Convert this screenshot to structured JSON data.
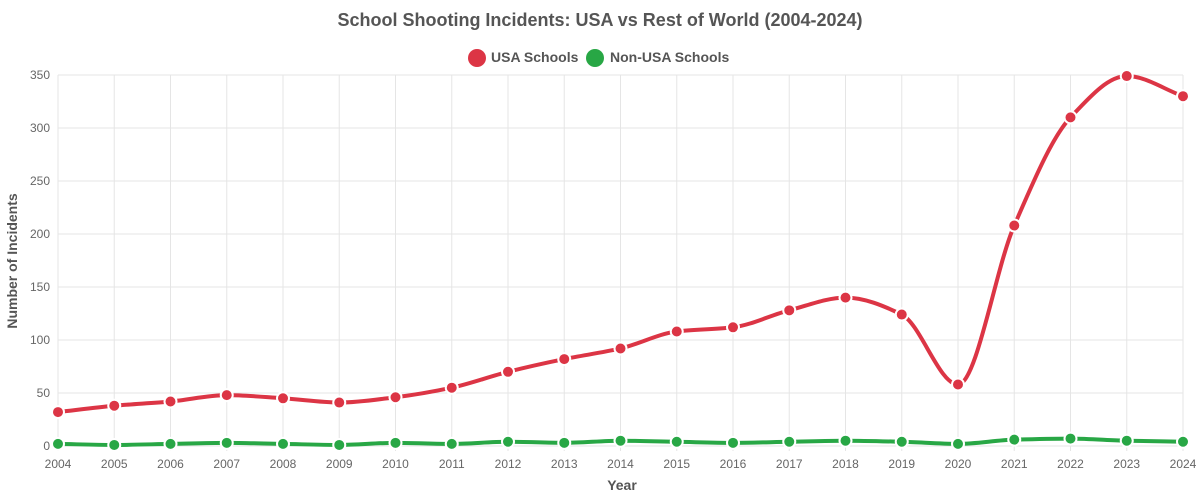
{
  "chart_data": {
    "type": "line",
    "title": "School Shooting Incidents: USA vs Rest of World (2004-2024)",
    "xlabel": "Year",
    "ylabel": "Number of Incidents",
    "ylim": [
      0,
      350
    ],
    "yticks": [
      0,
      50,
      100,
      150,
      200,
      250,
      300,
      350
    ],
    "grid": true,
    "legend_position": "top-center",
    "categories": [
      "2004",
      "2005",
      "2006",
      "2007",
      "2008",
      "2009",
      "2010",
      "2011",
      "2012",
      "2013",
      "2014",
      "2015",
      "2016",
      "2017",
      "2018",
      "2019",
      "2020",
      "2021",
      "2022",
      "2023",
      "2024"
    ],
    "series": [
      {
        "name": "USA Schools",
        "color": "#dc3545",
        "values": [
          32,
          38,
          42,
          48,
          45,
          41,
          46,
          55,
          70,
          82,
          92,
          108,
          112,
          128,
          140,
          124,
          58,
          208,
          310,
          349,
          330
        ]
      },
      {
        "name": "Non-USA Schools",
        "color": "#28a745",
        "values": [
          2,
          1,
          2,
          3,
          2,
          1,
          3,
          2,
          4,
          3,
          5,
          4,
          3,
          4,
          5,
          4,
          2,
          6,
          7,
          5,
          4
        ]
      }
    ]
  }
}
